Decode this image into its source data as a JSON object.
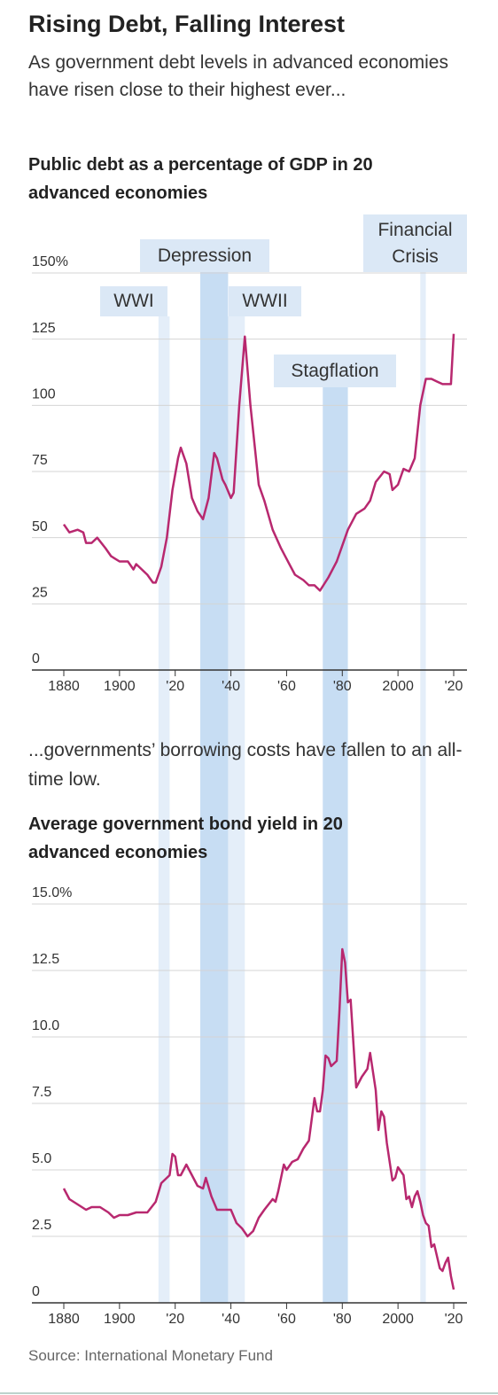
{
  "header": {
    "title": "Rising Debt, Falling Interest",
    "subtitle": "As government debt levels in advanced economies have risen close to their highest ever..."
  },
  "periods": [
    {
      "label": "WWI",
      "start": 1914,
      "end": 1918,
      "color": "#e4eef9"
    },
    {
      "label": "Depression",
      "start": 1929,
      "end": 1939,
      "color": "#c7ddf3"
    },
    {
      "label": "WWII",
      "start": 1939,
      "end": 1945,
      "color": "#e4eef9"
    },
    {
      "label": "Stagflation",
      "start": 1973,
      "end": 1982,
      "color": "#c7ddf3"
    },
    {
      "label": "Financial Crisis",
      "start": 2008,
      "end": 2010,
      "color": "#e4eef9"
    }
  ],
  "chart_data": [
    {
      "type": "line",
      "title": "Public debt as a percentage of GDP in 20 advanced economies",
      "color": "#b8286f",
      "xlim": [
        1880,
        2020
      ],
      "xticks": [
        1880,
        1900,
        {
          "value": 1920,
          "label": "'20"
        },
        {
          "value": 1940,
          "label": "'40"
        },
        {
          "value": 1960,
          "label": "'60"
        },
        {
          "value": 1980,
          "label": "'80"
        },
        2000,
        {
          "value": 2020,
          "label": "'20"
        }
      ],
      "ylim": [
        0,
        150
      ],
      "yticks": [
        0,
        25,
        50,
        75,
        100,
        125,
        {
          "value": 150,
          "label": "150%"
        }
      ],
      "grid": true,
      "x": [
        1880,
        1882,
        1885,
        1887,
        1888,
        1890,
        1892,
        1895,
        1897,
        1900,
        1903,
        1905,
        1906,
        1908,
        1910,
        1912,
        1913,
        1915,
        1917,
        1919,
        1921,
        1922,
        1924,
        1926,
        1928,
        1930,
        1932,
        1934,
        1935,
        1937,
        1938,
        1940,
        1941,
        1943,
        1945,
        1947,
        1949,
        1950,
        1952,
        1955,
        1958,
        1960,
        1963,
        1966,
        1968,
        1970,
        1972,
        1975,
        1978,
        1980,
        1982,
        1985,
        1988,
        1990,
        1992,
        1995,
        1997,
        1998,
        2000,
        2002,
        2004,
        2006,
        2008,
        2010,
        2012,
        2014,
        2016,
        2018,
        2019,
        2020
      ],
      "values": [
        55,
        52,
        53,
        52,
        48,
        48,
        50,
        46,
        43,
        41,
        41,
        38,
        40,
        38,
        36,
        33,
        33,
        39,
        50,
        68,
        80,
        84,
        78,
        65,
        60,
        57,
        65,
        82,
        80,
        72,
        70,
        65,
        67,
        100,
        126,
        100,
        80,
        70,
        64,
        53,
        46,
        42,
        36,
        34,
        32,
        32,
        30,
        35,
        41,
        47,
        53,
        59,
        61,
        64,
        71,
        75,
        74,
        68,
        70,
        76,
        75,
        80,
        100,
        110,
        110,
        109,
        108,
        108,
        108,
        127
      ]
    },
    {
      "type": "line",
      "intro": "...governments’ borrowing costs have fallen to an all-time low.",
      "title": "Average government bond yield in 20 advanced economies",
      "color": "#b8286f",
      "xlim": [
        1880,
        2020
      ],
      "xticks": [
        1880,
        1900,
        {
          "value": 1920,
          "label": "'20"
        },
        {
          "value": 1940,
          "label": "'40"
        },
        {
          "value": 1960,
          "label": "'60"
        },
        {
          "value": 1980,
          "label": "'80"
        },
        2000,
        {
          "value": 2020,
          "label": "'20"
        }
      ],
      "ylim": [
        0,
        15
      ],
      "yticks": [
        0,
        2.5,
        {
          "value": 5,
          "label": "5.0"
        },
        7.5,
        {
          "value": 10,
          "label": "10.0"
        },
        12.5,
        {
          "value": 15,
          "label": "15.0%"
        }
      ],
      "grid": true,
      "x": [
        1880,
        1882,
        1885,
        1888,
        1890,
        1893,
        1896,
        1898,
        1900,
        1903,
        1906,
        1910,
        1913,
        1915,
        1918,
        1919,
        1920,
        1921,
        1922,
        1924,
        1926,
        1928,
        1930,
        1931,
        1933,
        1935,
        1938,
        1940,
        1942,
        1944,
        1946,
        1948,
        1950,
        1952,
        1955,
        1956,
        1957,
        1959,
        1960,
        1962,
        1964,
        1966,
        1968,
        1970,
        1971,
        1972,
        1973,
        1974,
        1975,
        1976,
        1978,
        1979,
        1980,
        1981,
        1982,
        1983,
        1985,
        1987,
        1989,
        1990,
        1992,
        1993,
        1994,
        1995,
        1996,
        1998,
        1999,
        2000,
        2002,
        2003,
        2004,
        2005,
        2006,
        2007,
        2008,
        2009,
        2010,
        2011,
        2012,
        2013,
        2015,
        2016,
        2017,
        2018,
        2019,
        2020
      ],
      "values": [
        4.3,
        3.9,
        3.7,
        3.5,
        3.6,
        3.6,
        3.4,
        3.2,
        3.3,
        3.3,
        3.4,
        3.4,
        3.8,
        4.5,
        4.8,
        5.6,
        5.5,
        4.8,
        4.8,
        5.2,
        4.8,
        4.4,
        4.3,
        4.7,
        4.0,
        3.5,
        3.5,
        3.5,
        3.0,
        2.8,
        2.5,
        2.7,
        3.2,
        3.5,
        3.9,
        3.8,
        4.2,
        5.2,
        5.0,
        5.3,
        5.4,
        5.8,
        6.1,
        7.7,
        7.2,
        7.2,
        8.0,
        9.3,
        9.2,
        8.9,
        9.1,
        11.0,
        13.3,
        12.8,
        11.3,
        11.4,
        8.1,
        8.5,
        8.8,
        9.4,
        8.0,
        6.5,
        7.2,
        7.0,
        6.0,
        4.6,
        4.7,
        5.1,
        4.8,
        3.9,
        4.0,
        3.6,
        4.0,
        4.2,
        3.8,
        3.3,
        3.0,
        2.9,
        2.1,
        2.2,
        1.3,
        1.2,
        1.5,
        1.7,
        1.0,
        0.5
      ]
    }
  ],
  "source": "Source: International Monetary Fund"
}
